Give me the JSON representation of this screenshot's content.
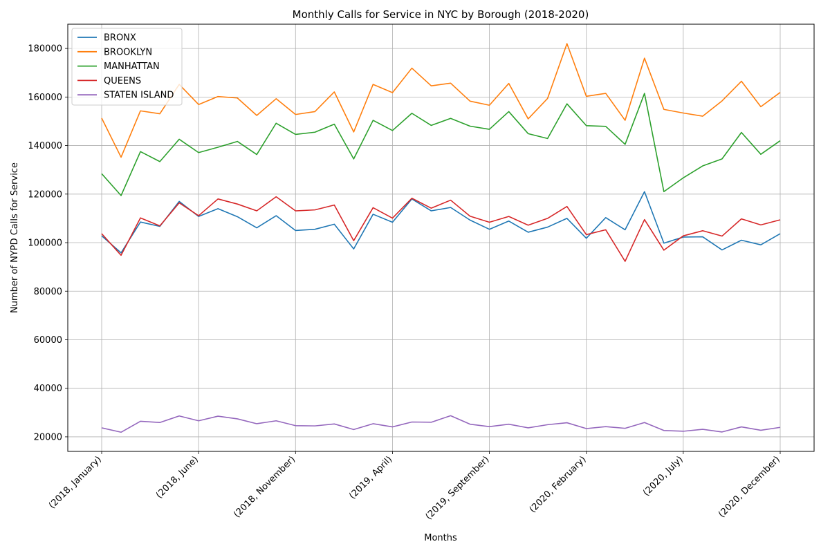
{
  "chart_data": {
    "type": "line",
    "title": "Monthly Calls for Service in NYC by Borough (2018-2020)",
    "xlabel": "Months",
    "ylabel": "Number of NYPD Calls for Service",
    "ylim": [
      14000,
      190000
    ],
    "yticks": [
      20000,
      40000,
      60000,
      80000,
      100000,
      120000,
      140000,
      160000,
      180000
    ],
    "xtick_labels": [
      {
        "index": 0,
        "label": "(2018, January)"
      },
      {
        "index": 5,
        "label": "(2018, June)"
      },
      {
        "index": 10,
        "label": "(2018, November)"
      },
      {
        "index": 15,
        "label": "(2019, April)"
      },
      {
        "index": 20,
        "label": "(2019, September)"
      },
      {
        "index": 25,
        "label": "(2020, February)"
      },
      {
        "index": 30,
        "label": "(2020, July)"
      },
      {
        "index": 35,
        "label": "(2020, December)"
      }
    ],
    "grid": true,
    "legend_position": "top-left",
    "series": [
      {
        "name": "BRONX",
        "color": "#1f77b4",
        "values": [
          102800,
          95800,
          108500,
          106700,
          117000,
          110800,
          114000,
          110700,
          106100,
          111100,
          105000,
          105500,
          107600,
          97400,
          111700,
          108400,
          118000,
          113100,
          114500,
          109300,
          105500,
          108900,
          104300,
          106400,
          110000,
          101800,
          110300,
          105300,
          121000,
          99800,
          102300,
          102400,
          97000,
          101000,
          99100,
          103700
        ]
      },
      {
        "name": "BROOKLYN",
        "color": "#ff7f0e",
        "values": [
          151300,
          135200,
          154300,
          153100,
          165200,
          156900,
          160200,
          159600,
          152400,
          159300,
          152800,
          154000,
          162100,
          145600,
          165200,
          161800,
          171900,
          164600,
          165700,
          158300,
          156600,
          165600,
          151000,
          159400,
          182000,
          160300,
          161500,
          150400,
          176000,
          154900,
          153400,
          152100,
          158400,
          166500,
          156000,
          161900
        ]
      },
      {
        "name": "MANHATTAN",
        "color": "#2ca02c",
        "values": [
          128400,
          119400,
          137500,
          133400,
          142600,
          137100,
          139300,
          141700,
          136300,
          149200,
          144600,
          145500,
          148800,
          134500,
          150400,
          146200,
          153300,
          148300,
          151200,
          148000,
          146700,
          154000,
          144900,
          142900,
          157200,
          148200,
          147900,
          140500,
          161500,
          121000,
          126700,
          131600,
          134500,
          145400,
          136400,
          142000
        ]
      },
      {
        "name": "QUEENS",
        "color": "#d62728",
        "values": [
          103700,
          94800,
          110200,
          106900,
          116400,
          111100,
          118000,
          115900,
          113100,
          118900,
          113100,
          113500,
          115500,
          100800,
          114400,
          110100,
          118300,
          114200,
          117500,
          110900,
          108400,
          110800,
          107200,
          110000,
          114900,
          103300,
          105300,
          92300,
          109500,
          96900,
          102800,
          104900,
          102700,
          109800,
          107300,
          109400
        ]
      },
      {
        "name": "STATEN ISLAND",
        "color": "#9467bd",
        "values": [
          23700,
          21900,
          26400,
          25900,
          28600,
          26600,
          28500,
          27400,
          25400,
          26600,
          24600,
          24500,
          25300,
          23000,
          25400,
          24100,
          26100,
          26000,
          28700,
          25200,
          24200,
          25200,
          23700,
          25000,
          25800,
          23400,
          24200,
          23500,
          25900,
          22600,
          22300,
          23100,
          22000,
          24100,
          22700,
          23900
        ]
      }
    ]
  }
}
